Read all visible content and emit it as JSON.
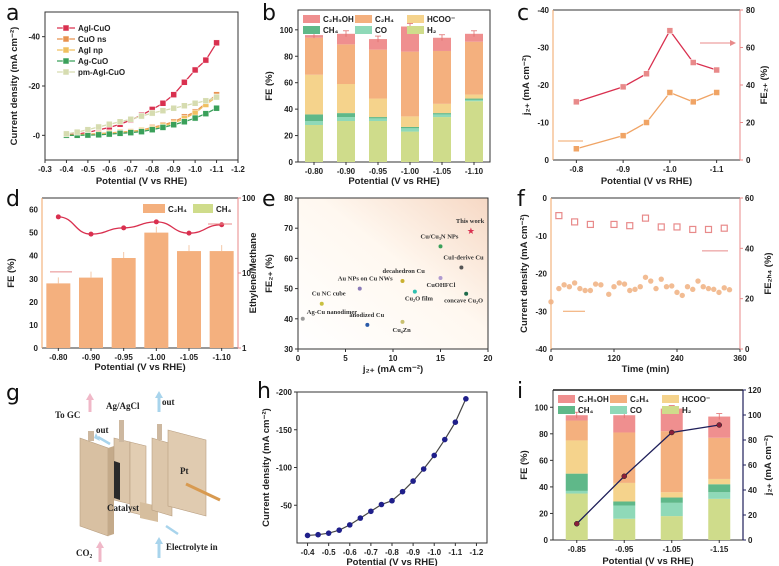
{
  "panel_labels": [
    "a",
    "b",
    "c",
    "d",
    "e",
    "f",
    "g",
    "h",
    "i"
  ],
  "colors": {
    "C2H5OH": "#ef8f8f",
    "C2H4": "#f4b07e",
    "HCOO": "#f5d38c",
    "CH4": "#5fb889",
    "CO": "#8fd9b8",
    "H2": "#cfdc8b",
    "red": "#d9304f",
    "salmon": "#e88a8a",
    "orange": "#f0a465",
    "navy": "#1f1f8a",
    "darkred": "#8a1f3a"
  },
  "diagram": {
    "labels": {
      "to_gc": "To GC",
      "ref": "Ag/AgCl",
      "out1": "out",
      "out2": "out",
      "pt": "Pt",
      "catalyst": "Catalyst",
      "co2": "CO₂",
      "electrolyte": "Electrolyte in"
    }
  },
  "chart_data": [
    {
      "id": "a",
      "type": "line",
      "xlabel": "Potential (V vs RHE)",
      "ylabel": "Current density (mA cm⁻²)",
      "xlim": [
        -0.3,
        -1.2
      ],
      "ylim": [
        10,
        -50
      ],
      "xticks": [
        -0.3,
        -0.4,
        -0.5,
        -0.6,
        -0.7,
        -0.8,
        -0.9,
        -1.0,
        -1.1,
        -1.2
      ],
      "xtick_labels": [
        "-0.3",
        "-0.4",
        "-0.5",
        "-0.6",
        "-0.7",
        "-0.8",
        "-0.9",
        "-1.0",
        "-1.1",
        "-1.2"
      ],
      "yticks": [
        -40,
        -20,
        0
      ],
      "ytick_labels": [
        "-40",
        "-20",
        "-0"
      ],
      "legend_position": "top-left",
      "x": [
        -0.4,
        -0.45,
        -0.5,
        -0.55,
        -0.6,
        -0.65,
        -0.7,
        -0.75,
        -0.8,
        -0.85,
        -0.9,
        -0.95,
        -1.0,
        -1.05,
        -1.1
      ],
      "series": [
        {
          "name": "AgI-CuO",
          "color": "#d9304f",
          "values": [
            -0.3,
            -0.5,
            -1.2,
            -2.2,
            -3.2,
            -4.5,
            -6.2,
            -8.2,
            -10.5,
            -13,
            -16.5,
            -21.5,
            -26.5,
            -30.5,
            -37.5
          ]
        },
        {
          "name": "CuO ns",
          "color": "#e8924f",
          "values": [
            -0.2,
            -0.3,
            -0.5,
            -0.7,
            -1,
            -1.3,
            -1.6,
            -2.1,
            -3.2,
            -4.2,
            -5.5,
            -7.5,
            -9.5,
            -13,
            -16.5
          ]
        },
        {
          "name": "AgI np",
          "color": "#f0c060",
          "values": [
            -0.1,
            -0.2,
            -0.4,
            -0.6,
            -0.9,
            -1.2,
            -1.5,
            -2,
            -2.8,
            -3.8,
            -5,
            -6.8,
            -9,
            -12.5,
            -15.5
          ]
        },
        {
          "name": "Ag-CuO",
          "color": "#3aa05a",
          "values": [
            0,
            0,
            -0.1,
            -0.2,
            -0.5,
            -0.8,
            -1.1,
            -1.5,
            -2.3,
            -3.2,
            -4.3,
            -5.5,
            -7,
            -8.8,
            -11
          ]
        },
        {
          "name": "pm-AgI-CuO",
          "color": "#d6dcb0",
          "values": [
            -0.6,
            -1.3,
            -2.3,
            -3.4,
            -4.5,
            -5.5,
            -6.5,
            -7.8,
            -9,
            -10,
            -11,
            -12,
            -13,
            -14,
            -15.5
          ]
        }
      ]
    },
    {
      "id": "b",
      "type": "bar",
      "stacked": true,
      "xlabel": "Potential (V vs RHE)",
      "ylabel": "FE (%)",
      "ylim": [
        0,
        115
      ],
      "yticks": [
        0,
        20,
        40,
        60,
        80,
        100
      ],
      "categories": [
        "-0.80",
        "-0.90",
        "-0.95",
        "-1.00",
        "-1.05",
        "-1.10"
      ],
      "legend_position": "top",
      "series": [
        {
          "name": "H₂",
          "key": "H2",
          "values": [
            28,
            31,
            31,
            23,
            34,
            46
          ]
        },
        {
          "name": "CO",
          "key": "CO",
          "values": [
            3,
            3,
            2,
            2.5,
            2,
            1
          ]
        },
        {
          "name": "CH₄",
          "key": "CH4",
          "values": [
            5,
            3,
            1,
            1,
            1,
            1
          ]
        },
        {
          "name": "HCOO⁻",
          "key": "HCOO",
          "values": [
            30,
            22,
            14,
            8,
            7,
            3
          ]
        },
        {
          "name": "C₂H₄",
          "key": "C2H4",
          "values": [
            28,
            30,
            37,
            49,
            40,
            40
          ]
        },
        {
          "name": "C₂H₅OH",
          "key": "C2H5OH",
          "values": [
            2,
            8,
            8,
            19,
            10,
            6
          ]
        }
      ],
      "legend_order": [
        "C₂H₅OH",
        "C₂H₄",
        "HCOO⁻",
        "CH₄",
        "CO",
        "H₂"
      ]
    },
    {
      "id": "c",
      "type": "line",
      "dual_axis": true,
      "xlabel": "Potential (V vs RHE)",
      "ylabel_left": "j₂₊ (mA cm⁻²)",
      "ylabel_right": "FE₂₊ (%)",
      "xlim": [
        -0.75,
        -1.15
      ],
      "ylim_left": [
        0,
        -40
      ],
      "ylim_right": [
        0,
        80
      ],
      "xticks": [
        -0.8,
        -0.9,
        -1.0,
        -1.1
      ],
      "xtick_labels": [
        "-0.8",
        "-0.9",
        "-1.0",
        "-1.1"
      ],
      "yticks_left": [
        0,
        -10,
        -20,
        -30,
        -40
      ],
      "ytick_left_labels": [
        "0",
        "-10",
        "-20",
        "-30",
        "-40"
      ],
      "yticks_right": [
        0,
        20,
        40,
        60,
        80
      ],
      "x": [
        -0.8,
        -0.9,
        -0.95,
        -1.0,
        -1.05,
        -1.1
      ],
      "series": [
        {
          "name": "j_C2+",
          "axis": "left",
          "color": "#f0a465",
          "values": [
            -3,
            -6.5,
            -10,
            -18,
            -15.5,
            -18
          ]
        },
        {
          "name": "FE_C2+",
          "axis": "right",
          "color": "#d9304f",
          "values": [
            31,
            39,
            46,
            69,
            52,
            48
          ]
        }
      ]
    },
    {
      "id": "d",
      "type": "bar",
      "dual_axis": true,
      "xlabel": "Potential (V vs RHE)",
      "ylabel_left": "FE (%)",
      "ylabel_right": "Ethylene/Methane",
      "ylim_left": [
        0,
        65
      ],
      "yticks_left": [
        0,
        10,
        20,
        30,
        40,
        50,
        60
      ],
      "ylim_right_log": [
        1,
        100
      ],
      "yticks_right": [
        1,
        10,
        100
      ],
      "categories": [
        "-0.80",
        "-0.90",
        "-0.95",
        "-1.00",
        "-1.05",
        "-1.10"
      ],
      "legend_position": "top-right",
      "series": [
        {
          "name": "C₂H₄",
          "type": "bar",
          "color": "#f4b07e",
          "values": [
            28,
            30.5,
            39,
            50,
            42,
            42
          ]
        },
        {
          "name": "CH₄",
          "type": "bar",
          "color": "#cfdc8b",
          "values": [
            0.5,
            1,
            1,
            1,
            1.5,
            1.5
          ]
        },
        {
          "name": "Ethylene/Methane",
          "type": "line",
          "axis": "right",
          "color": "#d9304f",
          "values": [
            56,
            33,
            40,
            48,
            34,
            44
          ]
        }
      ]
    },
    {
      "id": "e",
      "type": "scatter",
      "xlabel": "j₂₊ (mA cm⁻²)",
      "ylabel": "FE₂₊ (%)",
      "xlim": [
        0,
        20
      ],
      "ylim": [
        30,
        80
      ],
      "xticks": [
        0,
        5,
        10,
        15,
        20
      ],
      "yticks": [
        30,
        40,
        50,
        60,
        70,
        80
      ],
      "points": [
        {
          "label": "This work",
          "x": 18.2,
          "y": 69,
          "color": "#d9304f",
          "marker": "star"
        },
        {
          "label": "Cu/Cu₃N NPs",
          "x": 15,
          "y": 64,
          "color": "#3aa05a"
        },
        {
          "label": "CuI-derive Cu",
          "x": 17.2,
          "y": 57,
          "color": "#555555"
        },
        {
          "label": "decahedron Cu",
          "x": 11,
          "y": 52.5,
          "color": "#c9b030"
        },
        {
          "label": "CuOHFCl",
          "x": 15,
          "y": 53.5,
          "color": "#b09ad0"
        },
        {
          "label": "Au NPs on Cu NWs",
          "x": 6.5,
          "y": 50,
          "color": "#8a7ab8"
        },
        {
          "label": "Cu₂O film",
          "x": 12.3,
          "y": 49,
          "color": "#2fc0b0"
        },
        {
          "label": "concave Cu₂O",
          "x": 17.7,
          "y": 48.3,
          "color": "#1f6a4a"
        },
        {
          "label": "Cu NC cube",
          "x": 2.5,
          "y": 45,
          "color": "#c9c040"
        },
        {
          "label": "Ag-Cu nanodimer",
          "x": 0.5,
          "y": 40,
          "color": "#999999"
        },
        {
          "label": "anodized Cu",
          "x": 7.3,
          "y": 38,
          "color": "#2a5aa8"
        },
        {
          "label": "Cu₄Zn",
          "x": 11,
          "y": 39,
          "color": "#c9c070"
        }
      ]
    },
    {
      "id": "f",
      "type": "scatter",
      "dual_axis": true,
      "xlabel": "Time (min)",
      "ylabel_left": "Current density (mA cm⁻²)",
      "ylabel_right": "FE₂ₕ₄ (%)",
      "xlim": [
        0,
        360
      ],
      "ylim_left": [
        0,
        -40
      ],
      "ylim_right": [
        0,
        60
      ],
      "xticks": [
        0,
        120,
        240,
        360
      ],
      "yticks_left": [
        0,
        -10,
        -20,
        -30,
        -40
      ],
      "ytick_left_labels": [
        "0",
        "-10",
        "-20",
        "-30",
        "-40"
      ],
      "yticks_right": [
        0,
        20,
        40,
        60
      ],
      "series": [
        {
          "name": "FE_C2H4",
          "axis": "right",
          "color": "#e88a8a",
          "x": [
            15,
            45,
            75,
            120,
            150,
            180,
            210,
            240,
            270,
            300,
            330
          ],
          "values": [
            53,
            50.5,
            49.5,
            49.5,
            49,
            52,
            48.5,
            48.5,
            47.5,
            47.5,
            48
          ]
        },
        {
          "name": "Current density",
          "axis": "left",
          "color": "#f0b080",
          "x": [
            0,
            15,
            25,
            35,
            45,
            55,
            65,
            75,
            85,
            95,
            110,
            120,
            130,
            140,
            150,
            160,
            170,
            180,
            190,
            200,
            210,
            220,
            230,
            240,
            250,
            260,
            270,
            280,
            290,
            300,
            310,
            320,
            330,
            340
          ],
          "values": [
            -27.5,
            -24,
            -23,
            -23.5,
            -22.5,
            -24,
            -24.5,
            -24.5,
            -22.8,
            -23,
            -25.5,
            -23.5,
            -22.5,
            -22.8,
            -24.5,
            -24.2,
            -23.5,
            -21,
            -22,
            -24,
            -21.5,
            -23.5,
            -23.3,
            -25,
            -25.8,
            -23.5,
            -24.2,
            -22,
            -23.5,
            -24,
            -24.2,
            -25,
            -23.8,
            -24.3
          ]
        }
      ]
    },
    {
      "id": "h",
      "type": "line",
      "xlabel": "Potential (V vs RHE)",
      "ylabel": "Current density (mA cm⁻²)",
      "xlim": [
        -0.35,
        -1.25
      ],
      "ylim": [
        0,
        -200
      ],
      "xticks": [
        -0.4,
        -0.5,
        -0.6,
        -0.7,
        -0.8,
        -0.9,
        -1.0,
        -1.1,
        -1.2
      ],
      "xtick_labels": [
        "-0.4",
        "-0.5",
        "-0.6",
        "-0.7",
        "-0.8",
        "-0.9",
        "-1.0",
        "-1.1",
        "-1.2"
      ],
      "yticks": [
        -50,
        -100,
        -150,
        -200
      ],
      "x": [
        -0.4,
        -0.45,
        -0.5,
        -0.55,
        -0.6,
        -0.65,
        -0.7,
        -0.75,
        -0.8,
        -0.85,
        -0.9,
        -0.95,
        -1.0,
        -1.05,
        -1.1,
        -1.15
      ],
      "series": [
        {
          "name": "current",
          "color": "#1f1f8a",
          "values": [
            -10,
            -11,
            -13,
            -17,
            -24,
            -33,
            -42,
            -51,
            -56,
            -68,
            -82,
            -98,
            -116,
            -137,
            -160,
            -191
          ]
        }
      ]
    },
    {
      "id": "i",
      "type": "bar",
      "stacked": true,
      "dual_axis": true,
      "xlabel": "Potential (V vs RHE)",
      "ylabel_left": "FE (%)",
      "ylabel_right": "j₂₊ (mA cm⁻²)",
      "ylim_left": [
        0,
        113
      ],
      "yticks_left": [
        0,
        20,
        40,
        60,
        80,
        100
      ],
      "ylim_right": [
        0,
        120
      ],
      "yticks_right": [
        0,
        20,
        40,
        60,
        80,
        100,
        120
      ],
      "categories": [
        "-0.85",
        "-0.95",
        "-1.05",
        "-1.15"
      ],
      "legend_position": "top",
      "series": [
        {
          "name": "H₂",
          "key": "H2",
          "values": [
            35,
            16,
            18,
            31
          ]
        },
        {
          "name": "CO",
          "key": "CO",
          "values": [
            2,
            10,
            10,
            5
          ]
        },
        {
          "name": "CH₄",
          "key": "CH4",
          "values": [
            13,
            3,
            4,
            6
          ]
        },
        {
          "name": "HCOO⁻",
          "key": "HCOO",
          "values": [
            25,
            14,
            4,
            4
          ]
        },
        {
          "name": "C₂H₄",
          "key": "C2H4",
          "values": [
            15,
            38,
            46,
            31
          ]
        },
        {
          "name": "C₂H₅OH",
          "key": "C2H5OH",
          "values": [
            4,
            13,
            17,
            16
          ]
        }
      ],
      "legend_order": [
        "C₂H₅OH",
        "C₂H₄",
        "HCOO⁻",
        "CH₄",
        "CO",
        "H₂"
      ],
      "line": {
        "name": "j_C2+",
        "axis": "right",
        "color": "#1f1f5a",
        "values": [
          13,
          51,
          86,
          92
        ]
      }
    }
  ]
}
